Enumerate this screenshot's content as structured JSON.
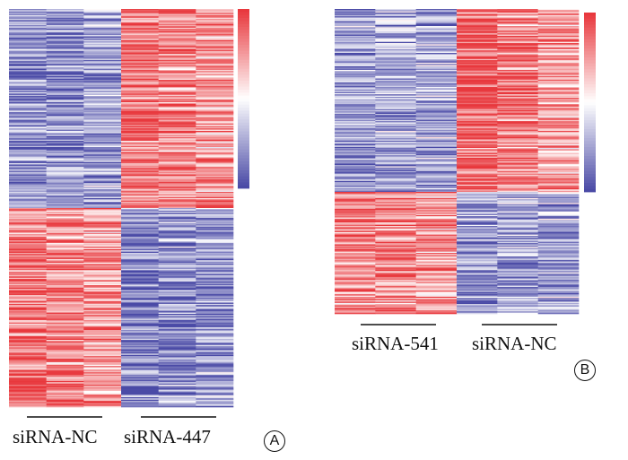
{
  "chart_data": [
    {
      "type": "heatmap",
      "panel_label": "A",
      "groups": [
        "siRNA-NC",
        "siRNA-447"
      ],
      "columns_per_group": 3,
      "colorscale": [
        "#4a4aa6",
        "#ffffff",
        "#e8383d"
      ],
      "colorbar_ticks": [],
      "row_blocks": [
        {
          "rows": 160,
          "pattern": [
            -0.6,
            -0.6,
            -0.5,
            0.7,
            0.6,
            0.5
          ]
        },
        {
          "rows": 160,
          "pattern": [
            0.7,
            0.6,
            0.5,
            -0.7,
            -0.6,
            -0.6
          ]
        }
      ]
    },
    {
      "type": "heatmap",
      "panel_label": "B",
      "groups": [
        "siRNA-541",
        "siRNA-NC"
      ],
      "columns_per_group": 3,
      "colorscale": [
        "#4a4aa6",
        "#ffffff",
        "#e8383d"
      ],
      "colorbar_ticks": [],
      "row_blocks": [
        {
          "rows": 150,
          "pattern": [
            -0.6,
            -0.5,
            -0.5,
            0.8,
            0.6,
            0.5
          ]
        },
        {
          "rows": 100,
          "pattern": [
            0.6,
            0.6,
            0.5,
            -0.6,
            -0.5,
            -0.5
          ]
        }
      ]
    }
  ]
}
